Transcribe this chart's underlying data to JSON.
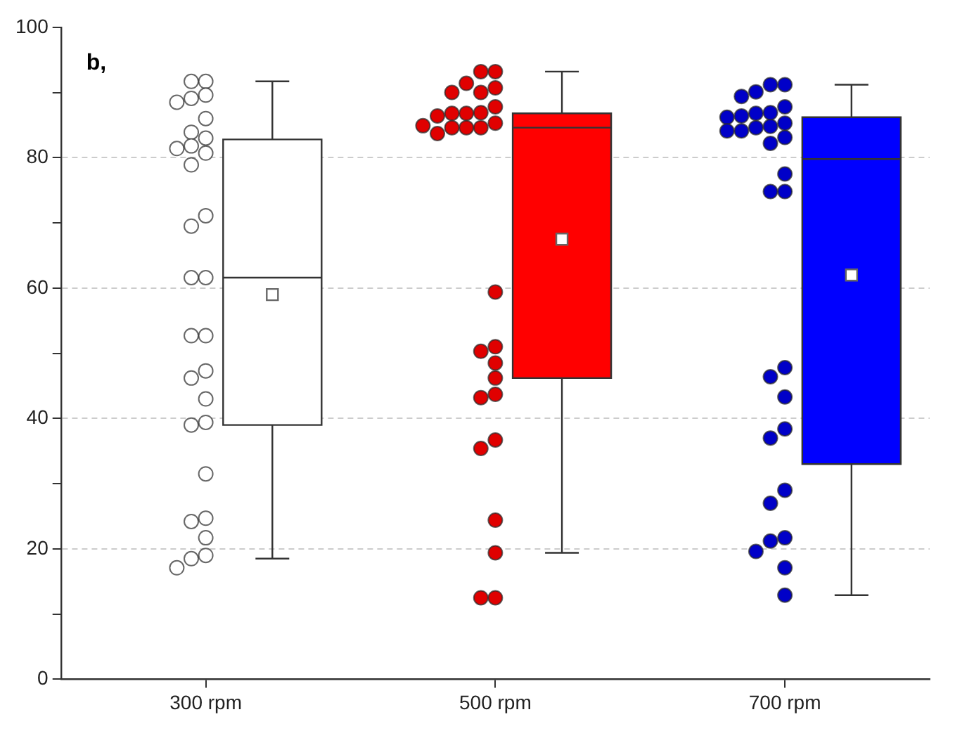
{
  "chart_data": {
    "type": "box",
    "categories": [
      "300 rpm",
      "500 rpm",
      "700 rpm"
    ],
    "colors": [
      "#ffffff",
      "#ff0000",
      "#0000ff"
    ],
    "boxes": [
      {
        "low": 18.5,
        "q1": 39,
        "median": 61.6,
        "q3": 82.8,
        "high": 91.7,
        "mean": 59
      },
      {
        "low": 19.4,
        "q1": 46.2,
        "median": 84.6,
        "q3": 86.8,
        "high": 93.2,
        "mean": 67.5
      },
      {
        "low": 12.9,
        "q1": 33,
        "median": 79.8,
        "q3": 86.2,
        "high": 91.2,
        "mean": 62
      }
    ],
    "series": [
      {
        "type": "scatter",
        "color": "#ffffff",
        "x": [
          "300 rpm",
          "300 rpm",
          "300 rpm",
          "300 rpm",
          "300 rpm",
          "300 rpm",
          "300 rpm",
          "300 rpm",
          "300 rpm",
          "300 rpm",
          "300 rpm",
          "300 rpm",
          "300 rpm",
          "300 rpm",
          "300 rpm",
          "300 rpm",
          "300 rpm",
          "300 rpm",
          "300 rpm",
          "300 rpm",
          "300 rpm",
          "300 rpm",
          "300 rpm",
          "300 rpm",
          "300 rpm",
          "300 rpm",
          "300 rpm",
          "300 rpm",
          "300 rpm",
          "300 rpm"
        ],
        "values": [
          91.7,
          91.7,
          89.1,
          89.6,
          88.5,
          86,
          83.9,
          83,
          81.8,
          80.7,
          81.4,
          78.9,
          71.1,
          69.5,
          61.6,
          61.6,
          52.7,
          52.7,
          47.3,
          46.2,
          43,
          39,
          39.4,
          31.5,
          24.7,
          24.2,
          21.7,
          19,
          18.5,
          17.1
        ]
      },
      {
        "type": "scatter",
        "color": "#e00000",
        "x": [
          "500 rpm",
          "500 rpm",
          "500 rpm",
          "500 rpm",
          "500 rpm",
          "500 rpm",
          "500 rpm",
          "500 rpm",
          "500 rpm",
          "500 rpm",
          "500 rpm",
          "500 rpm",
          "500 rpm",
          "500 rpm",
          "500 rpm",
          "500 rpm",
          "500 rpm",
          "500 rpm",
          "500 rpm",
          "500 rpm",
          "500 rpm",
          "500 rpm",
          "500 rpm",
          "500 rpm",
          "500 rpm",
          "500 rpm",
          "500 rpm",
          "500 rpm",
          "500 rpm",
          "500 rpm"
        ],
        "values": [
          93.2,
          93.2,
          90,
          90,
          90.7,
          91.4,
          84.6,
          84.6,
          87.8,
          86.9,
          86.8,
          86.4,
          86.8,
          85.3,
          84.9,
          84.6,
          83.7,
          59.4,
          51,
          50.3,
          48.5,
          46.2,
          43.7,
          43.2,
          36.7,
          35.4,
          24.4,
          19.4,
          12.5,
          12.5
        ]
      },
      {
        "type": "scatter",
        "color": "#0000c8",
        "x": [
          "700 rpm",
          "700 rpm",
          "700 rpm",
          "700 rpm",
          "700 rpm",
          "700 rpm",
          "700 rpm",
          "700 rpm",
          "700 rpm",
          "700 rpm",
          "700 rpm",
          "700 rpm",
          "700 rpm",
          "700 rpm",
          "700 rpm",
          "700 rpm",
          "700 rpm",
          "700 rpm",
          "700 rpm",
          "700 rpm",
          "700 rpm",
          "700 rpm",
          "700 rpm",
          "700 rpm",
          "700 rpm",
          "700 rpm",
          "700 rpm",
          "700 rpm",
          "700 rpm",
          "700 rpm",
          "700 rpm"
        ],
        "values": [
          91.2,
          90.1,
          91.2,
          89.4,
          87.8,
          86.2,
          86.4,
          84.6,
          82.2,
          84.1,
          83.1,
          84.1,
          84.8,
          86.9,
          85.3,
          86.8,
          77.5,
          74.8,
          74.8,
          47.8,
          46.4,
          43.3,
          38.4,
          37,
          29,
          27,
          21.7,
          21.2,
          19.6,
          17.1,
          12.9
        ]
      }
    ],
    "ylim": [
      0,
      100
    ],
    "yticks": [
      0,
      {
        "value": 10,
        "label": null
      },
      20,
      {
        "value": 30,
        "label": null
      },
      40,
      {
        "value": 50,
        "label": null
      },
      60,
      {
        "value": 70,
        "label": null
      },
      80,
      {
        "value": 90,
        "label": null
      },
      100
    ],
    "grid": "y",
    "marker": "circle",
    "legend": false,
    "annotations": [
      "b,"
    ]
  }
}
